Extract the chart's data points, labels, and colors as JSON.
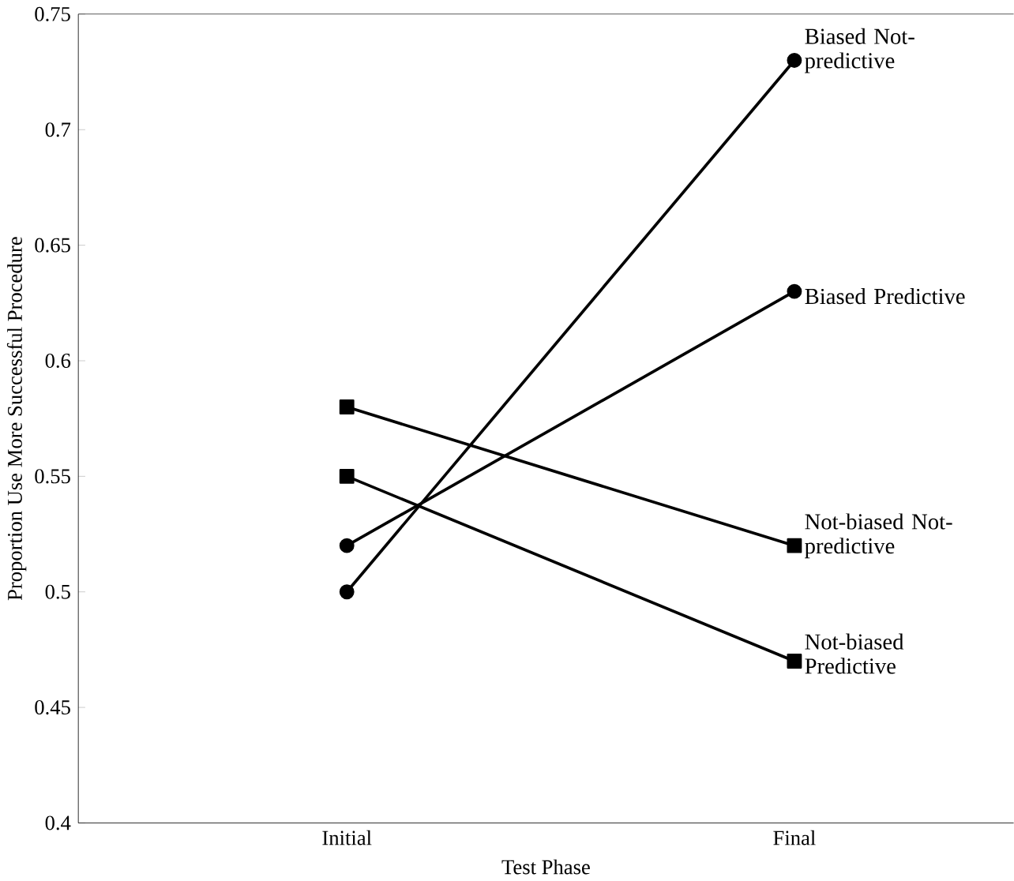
{
  "chart_data": {
    "type": "line",
    "xlabel": "Test Phase",
    "ylabel": "Proportion Use More Successful Procedure",
    "categories": [
      "Initial",
      "Final"
    ],
    "ylim": [
      0.4,
      0.75
    ],
    "yticks": [
      0.4,
      0.45,
      0.5,
      0.55,
      0.6,
      0.65,
      0.7,
      0.75
    ],
    "legend": false,
    "grid": false,
    "line_style": "solid",
    "series": [
      {
        "name": "Biased Not-predictive",
        "color": "#000000",
        "marker": "circle",
        "values": [
          0.5,
          0.73
        ]
      },
      {
        "name": "Biased Predictive",
        "color": "#000000",
        "marker": "circle",
        "values": [
          0.52,
          0.63
        ]
      },
      {
        "name": "Not-biased Not-predictive",
        "color": "#000000",
        "marker": "square",
        "values": [
          0.58,
          0.52
        ]
      },
      {
        "name": "Not-biased Predictive",
        "color": "#000000",
        "marker": "square",
        "values": [
          0.55,
          0.47
        ]
      }
    ]
  }
}
